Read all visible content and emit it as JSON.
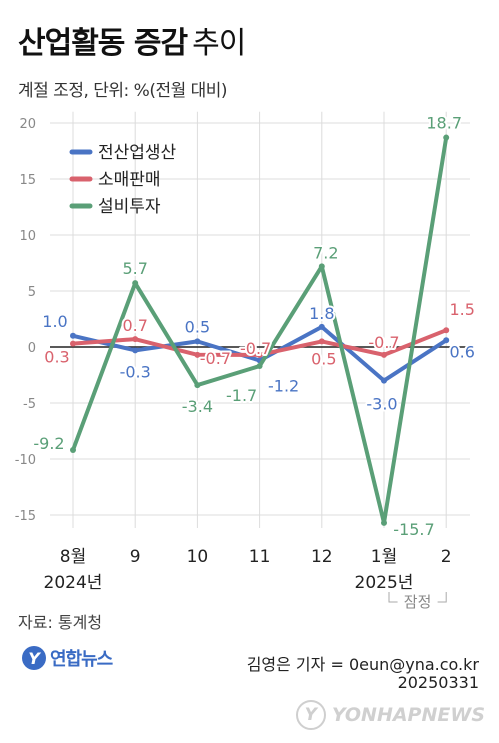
{
  "title": {
    "bold": "산업활동 증감",
    "light": "추이"
  },
  "subtitle": "계절 조정, 단위: %(전월 대비)",
  "source": "자료: 통계청",
  "logo": {
    "text": "연합뉴스",
    "mark": "Y"
  },
  "credit": "김영은 기자 = 0eun@yna.co.kr",
  "date": "20250331",
  "watermark": {
    "text": "YONHAPNEWS",
    "mark": "Y"
  },
  "colors": {
    "production": "#4a74c4",
    "retail": "#d9626d",
    "investment": "#5a9f77",
    "axis": "#222222",
    "grid": "#dcdcdc"
  },
  "chart_data": {
    "type": "line",
    "categories": [
      "8월",
      "9",
      "10",
      "11",
      "12",
      "1월",
      "2"
    ],
    "year_labels": [
      {
        "index": 0,
        "text": "2024년"
      },
      {
        "index": 5,
        "text": "2025년"
      }
    ],
    "provisional": {
      "index": 6,
      "text": "잠정"
    },
    "ylim": [
      -17.5,
      21
    ],
    "yticks": [
      20,
      15,
      10,
      5,
      0,
      -5,
      -10,
      -15
    ],
    "ytick_labels": [
      "20",
      "15",
      "10",
      "5",
      "0",
      "-5",
      "-10",
      "-15"
    ],
    "grid": true,
    "legend_position": "top-left",
    "series": [
      {
        "name": "전산업생산",
        "color": "#4a74c4",
        "values": [
          1.0,
          -0.3,
          0.5,
          -1.2,
          1.8,
          -3.0,
          0.6
        ],
        "labels": [
          "1.0",
          "-0.3",
          "0.5",
          "-1.2",
          "1.8",
          "-3.0",
          "0.6"
        ]
      },
      {
        "name": "소매판매",
        "color": "#d9626d",
        "values": [
          0.3,
          0.7,
          -0.7,
          -0.7,
          0.5,
          -0.7,
          1.5
        ],
        "labels": [
          "0.3",
          "0.7",
          "-0.7",
          "-0.7",
          "0.5",
          "-0.7",
          "1.5"
        ]
      },
      {
        "name": "설비투자",
        "color": "#5a9f77",
        "values": [
          -9.2,
          5.7,
          -3.4,
          -1.7,
          7.2,
          -15.7,
          18.7
        ],
        "labels": [
          "-9.2",
          "5.7",
          "-3.4",
          "-1.7",
          "7.2",
          "-15.7",
          "18.7"
        ]
      }
    ]
  }
}
